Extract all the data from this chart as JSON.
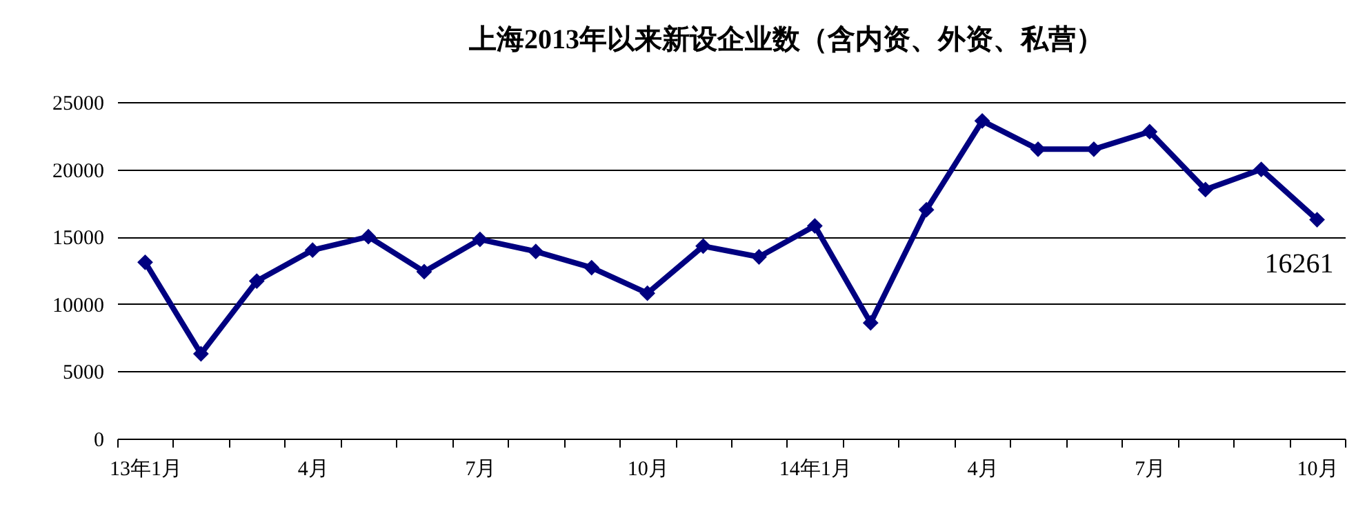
{
  "chart_data": {
    "type": "line",
    "title": "上海2013年以来新设企业数（含内资、外资、私营）",
    "categories": [
      "13年1月",
      null,
      null,
      "4月",
      null,
      null,
      "7月",
      null,
      null,
      "10月",
      null,
      null,
      "14年1月",
      null,
      null,
      "4月",
      null,
      null,
      "7月",
      null,
      null,
      "10月"
    ],
    "series": [
      {
        "color": "#000080",
        "values": [
          13100,
          6300,
          11700,
          14000,
          15000,
          12400,
          14800,
          13900,
          12700,
          10800,
          14300,
          13500,
          15800,
          8600,
          17000,
          23600,
          21500,
          21500,
          22800,
          18500,
          20000,
          16261
        ],
        "value_labels": [
          null,
          null,
          null,
          null,
          null,
          null,
          null,
          null,
          null,
          null,
          null,
          null,
          null,
          null,
          null,
          null,
          null,
          null,
          null,
          null,
          null,
          "16261"
        ]
      }
    ],
    "ylim": [
      0,
      25000
    ],
    "yticks": [
      0,
      5000,
      10000,
      15000,
      20000,
      25000
    ],
    "grid": "y",
    "marker": "diamond",
    "line_style": "solid"
  }
}
